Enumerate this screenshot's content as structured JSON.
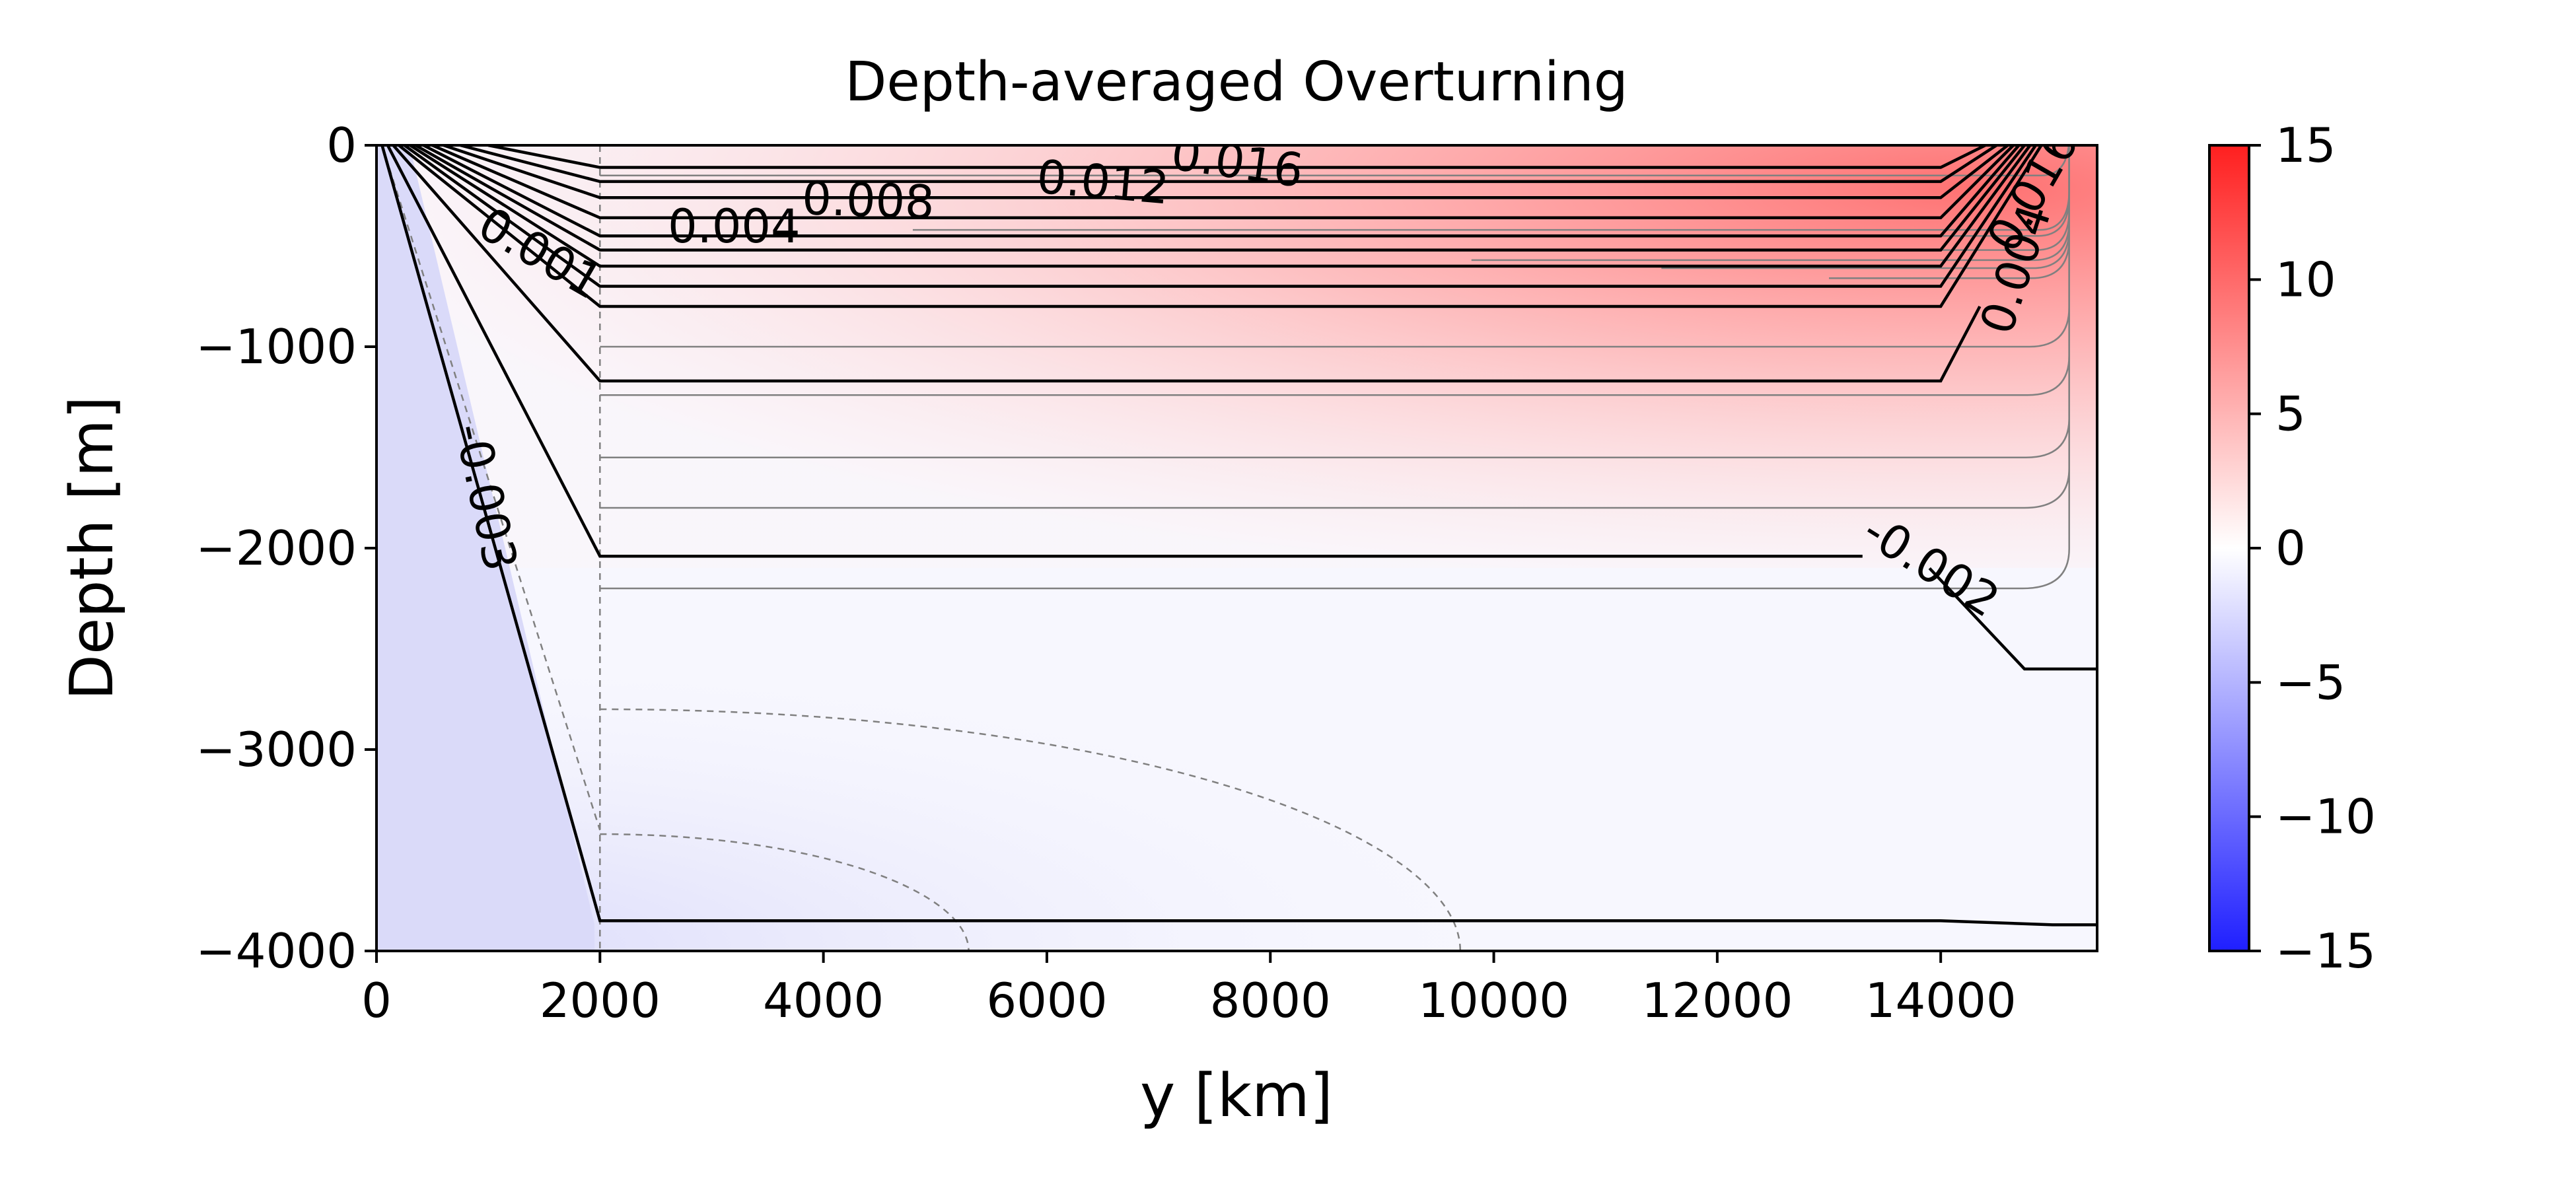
{
  "chart_data": {
    "type": "contour",
    "title": "Depth-averaged Overturning",
    "xlabel": "y [km]",
    "ylabel": "Depth [m]",
    "xlim": [
      0,
      15400
    ],
    "ylim": [
      -4000,
      0
    ],
    "xticks": [
      0,
      2000,
      4000,
      6000,
      8000,
      10000,
      12000,
      14000
    ],
    "xtick_labels": [
      "0",
      "2000",
      "4000",
      "6000",
      "8000",
      "10000",
      "12000",
      "14000"
    ],
    "yticks": [
      0,
      -1000,
      -2000,
      -3000,
      -4000
    ],
    "ytick_labels": [
      "0",
      "−1000",
      "−2000",
      "−3000",
      "−4000"
    ],
    "colorbar": {
      "vmin": -15,
      "vmax": 15,
      "colormap": "bwr",
      "ticks": [
        15,
        10,
        5,
        0,
        -5,
        -10,
        -15
      ],
      "tick_labels": [
        "15",
        "10",
        "5",
        "0",
        "−5",
        "−10",
        "−15"
      ]
    },
    "contour_labels": [
      {
        "text": "0.016",
        "x": 7700,
        "y": -100,
        "angle": 8
      },
      {
        "text": "0.012",
        "x": 6500,
        "y": -200,
        "angle": 5
      },
      {
        "text": "0.008",
        "x": 4400,
        "y": -290,
        "angle": 2
      },
      {
        "text": "0.004",
        "x": 3200,
        "y": -420,
        "angle": 0
      },
      {
        "text": "0.001",
        "x": 1450,
        "y": -550,
        "angle": 30
      },
      {
        "text": "-0.003",
        "x": 950,
        "y": -1750,
        "angle": 78
      },
      {
        "text": "-0.002",
        "x": 13900,
        "y": -2100,
        "angle": 32
      },
      {
        "text": "0.004",
        "x": 14700,
        "y": -620,
        "angle": -72
      },
      {
        "text": "0.016",
        "x": 14850,
        "y": -230,
        "angle": -60
      }
    ],
    "black_contours": [
      [
        [
          200,
          0
        ],
        [
          2000,
          -800
        ],
        [
          14000,
          -800
        ],
        [
          14900,
          0
        ]
      ],
      [
        [
          250,
          0
        ],
        [
          2000,
          -700
        ],
        [
          14000,
          -700
        ],
        [
          14850,
          0
        ]
      ],
      [
        [
          300,
          0
        ],
        [
          2000,
          -600
        ],
        [
          14000,
          -600
        ],
        [
          14800,
          0
        ]
      ],
      [
        [
          350,
          0
        ],
        [
          2000,
          -520
        ],
        [
          14000,
          -520
        ],
        [
          14750,
          0
        ]
      ],
      [
        [
          420,
          0
        ],
        [
          2000,
          -450
        ],
        [
          14000,
          -450
        ],
        [
          14700,
          0
        ]
      ],
      [
        [
          500,
          0
        ],
        [
          2000,
          -360
        ],
        [
          14000,
          -360
        ],
        [
          14650,
          0
        ]
      ],
      [
        [
          600,
          0
        ],
        [
          2000,
          -260
        ],
        [
          14000,
          -260
        ],
        [
          14600,
          0
        ]
      ],
      [
        [
          750,
          0
        ],
        [
          2000,
          -180
        ],
        [
          14000,
          -180
        ],
        [
          14500,
          0
        ]
      ],
      [
        [
          1000,
          0
        ],
        [
          2000,
          -110
        ],
        [
          14000,
          -110
        ],
        [
          14400,
          0
        ]
      ],
      [
        [
          150,
          0
        ],
        [
          2000,
          -1170
        ],
        [
          14000,
          -1170
        ],
        [
          14350,
          -800
        ]
      ],
      [
        [
          100,
          0
        ],
        [
          2000,
          -2040
        ],
        [
          13300,
          -2040
        ]
      ],
      [
        [
          13900,
          -2100
        ],
        [
          14750,
          -2600
        ],
        [
          15400,
          -2600
        ]
      ],
      [
        [
          50,
          0
        ],
        [
          2000,
          -3850
        ],
        [
          14000,
          -3850
        ],
        [
          15000,
          -3870
        ],
        [
          15400,
          -3870
        ]
      ]
    ],
    "gray_solid_contours": [
      {
        "top": -150,
        "start": 2000
      },
      {
        "top": -420,
        "start": 4800
      },
      {
        "top": -450,
        "start": 6450
      },
      {
        "top": -520,
        "start": 8100
      },
      {
        "top": -570,
        "start": 9800
      },
      {
        "top": -610,
        "start": 11500
      },
      {
        "top": -660,
        "start": 13000
      },
      {
        "top": -1000,
        "start": 2000
      },
      {
        "top": -1240,
        "start": 2000
      },
      {
        "top": -1550,
        "start": 2000
      },
      {
        "top": -1800,
        "start": 2000
      },
      {
        "top": -2200,
        "start": 2000
      }
    ],
    "gray_dashed_contours": [
      {
        "depth": -2800,
        "end": 9700
      },
      {
        "depth": -3420,
        "end": 5300
      }
    ]
  }
}
